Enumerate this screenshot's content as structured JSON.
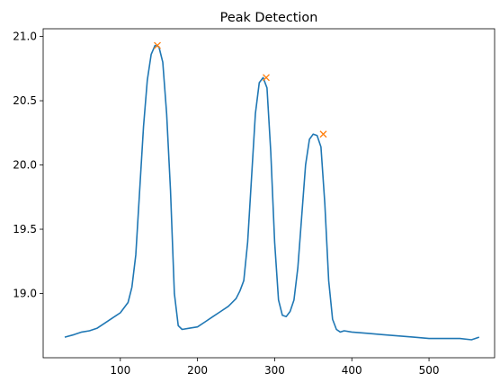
{
  "chart_data": {
    "type": "line",
    "title": "Peak Detection",
    "xlabel": "",
    "ylabel": "",
    "xlim": [
      0,
      585
    ],
    "ylim": [
      18.5,
      21.06
    ],
    "xticks": [
      100,
      200,
      300,
      400,
      500
    ],
    "yticks": [
      19.0,
      19.5,
      20.0,
      20.5,
      21.0
    ],
    "ytick_labels": [
      "19.0",
      "19.5",
      "20.0",
      "20.5",
      "21.0"
    ],
    "grid": false,
    "series": [
      {
        "color": "#1f77b4",
        "x": [
          28,
          40,
          50,
          60,
          70,
          80,
          90,
          100,
          110,
          115,
          120,
          125,
          130,
          135,
          140,
          145,
          150,
          155,
          160,
          165,
          170,
          175,
          180,
          190,
          200,
          210,
          220,
          230,
          240,
          250,
          255,
          260,
          265,
          270,
          275,
          280,
          285,
          290,
          295,
          300,
          305,
          310,
          315,
          320,
          325,
          330,
          335,
          340,
          345,
          350,
          355,
          360,
          365,
          370,
          375,
          380,
          385,
          390,
          400,
          420,
          440,
          460,
          480,
          500,
          520,
          540,
          555,
          565
        ],
        "y": [
          18.66,
          18.68,
          18.7,
          18.71,
          18.73,
          18.77,
          18.81,
          18.85,
          18.93,
          19.05,
          19.3,
          19.8,
          20.3,
          20.66,
          20.86,
          20.93,
          20.92,
          20.8,
          20.4,
          19.8,
          19.0,
          18.75,
          18.72,
          18.73,
          18.74,
          18.78,
          18.82,
          18.86,
          18.9,
          18.96,
          19.02,
          19.1,
          19.4,
          19.9,
          20.4,
          20.64,
          20.68,
          20.6,
          20.1,
          19.4,
          18.95,
          18.83,
          18.82,
          18.86,
          18.95,
          19.2,
          19.6,
          20.0,
          20.2,
          20.24,
          20.23,
          20.14,
          19.7,
          19.1,
          18.8,
          18.72,
          18.7,
          18.71,
          18.7,
          18.69,
          18.68,
          18.67,
          18.66,
          18.65,
          18.65,
          18.65,
          18.64,
          18.66
        ]
      },
      {
        "color": "#ff7f0e",
        "marker": "x",
        "x": [
          148,
          289,
          363
        ],
        "y": [
          20.93,
          20.68,
          20.24
        ]
      }
    ]
  }
}
